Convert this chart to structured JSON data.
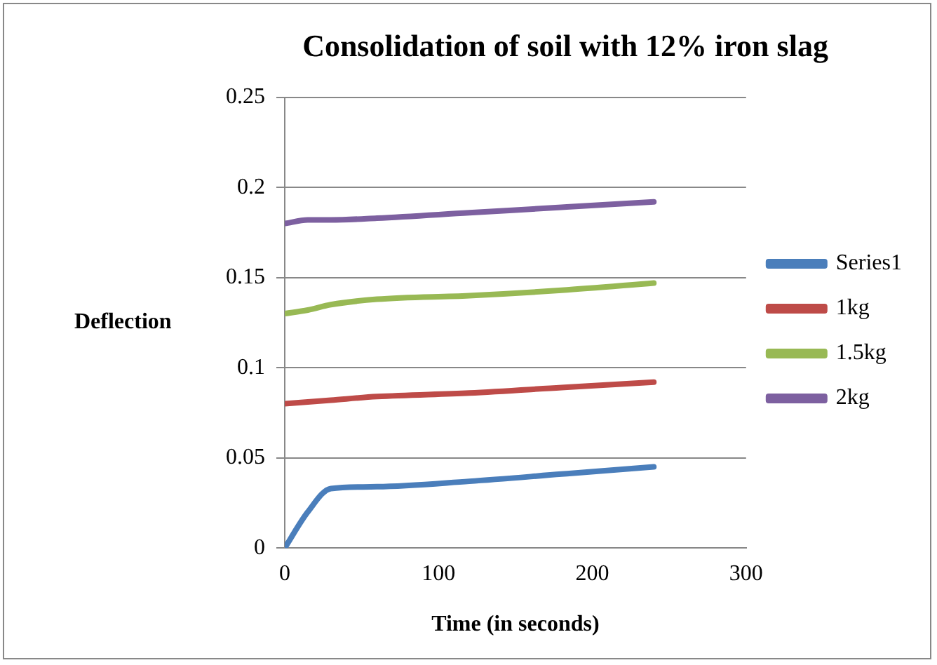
{
  "chart_data": {
    "type": "line",
    "title": "Consolidation of soil with 12% iron slag",
    "xlabel": "Time (in seconds)",
    "ylabel": "Deflection",
    "x": [
      0,
      15,
      30,
      60,
      120,
      180,
      240
    ],
    "series": [
      {
        "name": "Series1",
        "color": "#4a7ebb",
        "values": [
          0,
          0.02,
          0.033,
          0.034,
          0.037,
          0.041,
          0.045
        ]
      },
      {
        "name": "1kg",
        "color": "#be4b48",
        "values": [
          0.08,
          0.081,
          0.082,
          0.084,
          0.086,
          0.089,
          0.092
        ]
      },
      {
        "name": "1.5kg",
        "color": "#98b954",
        "values": [
          0.13,
          0.132,
          0.135,
          0.138,
          0.14,
          0.143,
          0.147
        ]
      },
      {
        "name": "2kg",
        "color": "#7d60a0",
        "values": [
          0.18,
          0.182,
          0.182,
          0.183,
          0.186,
          0.189,
          0.192
        ]
      }
    ],
    "xlim": [
      0,
      300
    ],
    "xticks": [
      0,
      100,
      200,
      300
    ],
    "ylim": [
      0,
      0.25
    ],
    "yticks": [
      0,
      0.05,
      0.1,
      0.15,
      0.2,
      0.25
    ],
    "grid": "y",
    "legend": "right",
    "marker": "none",
    "line_style": "solid"
  }
}
